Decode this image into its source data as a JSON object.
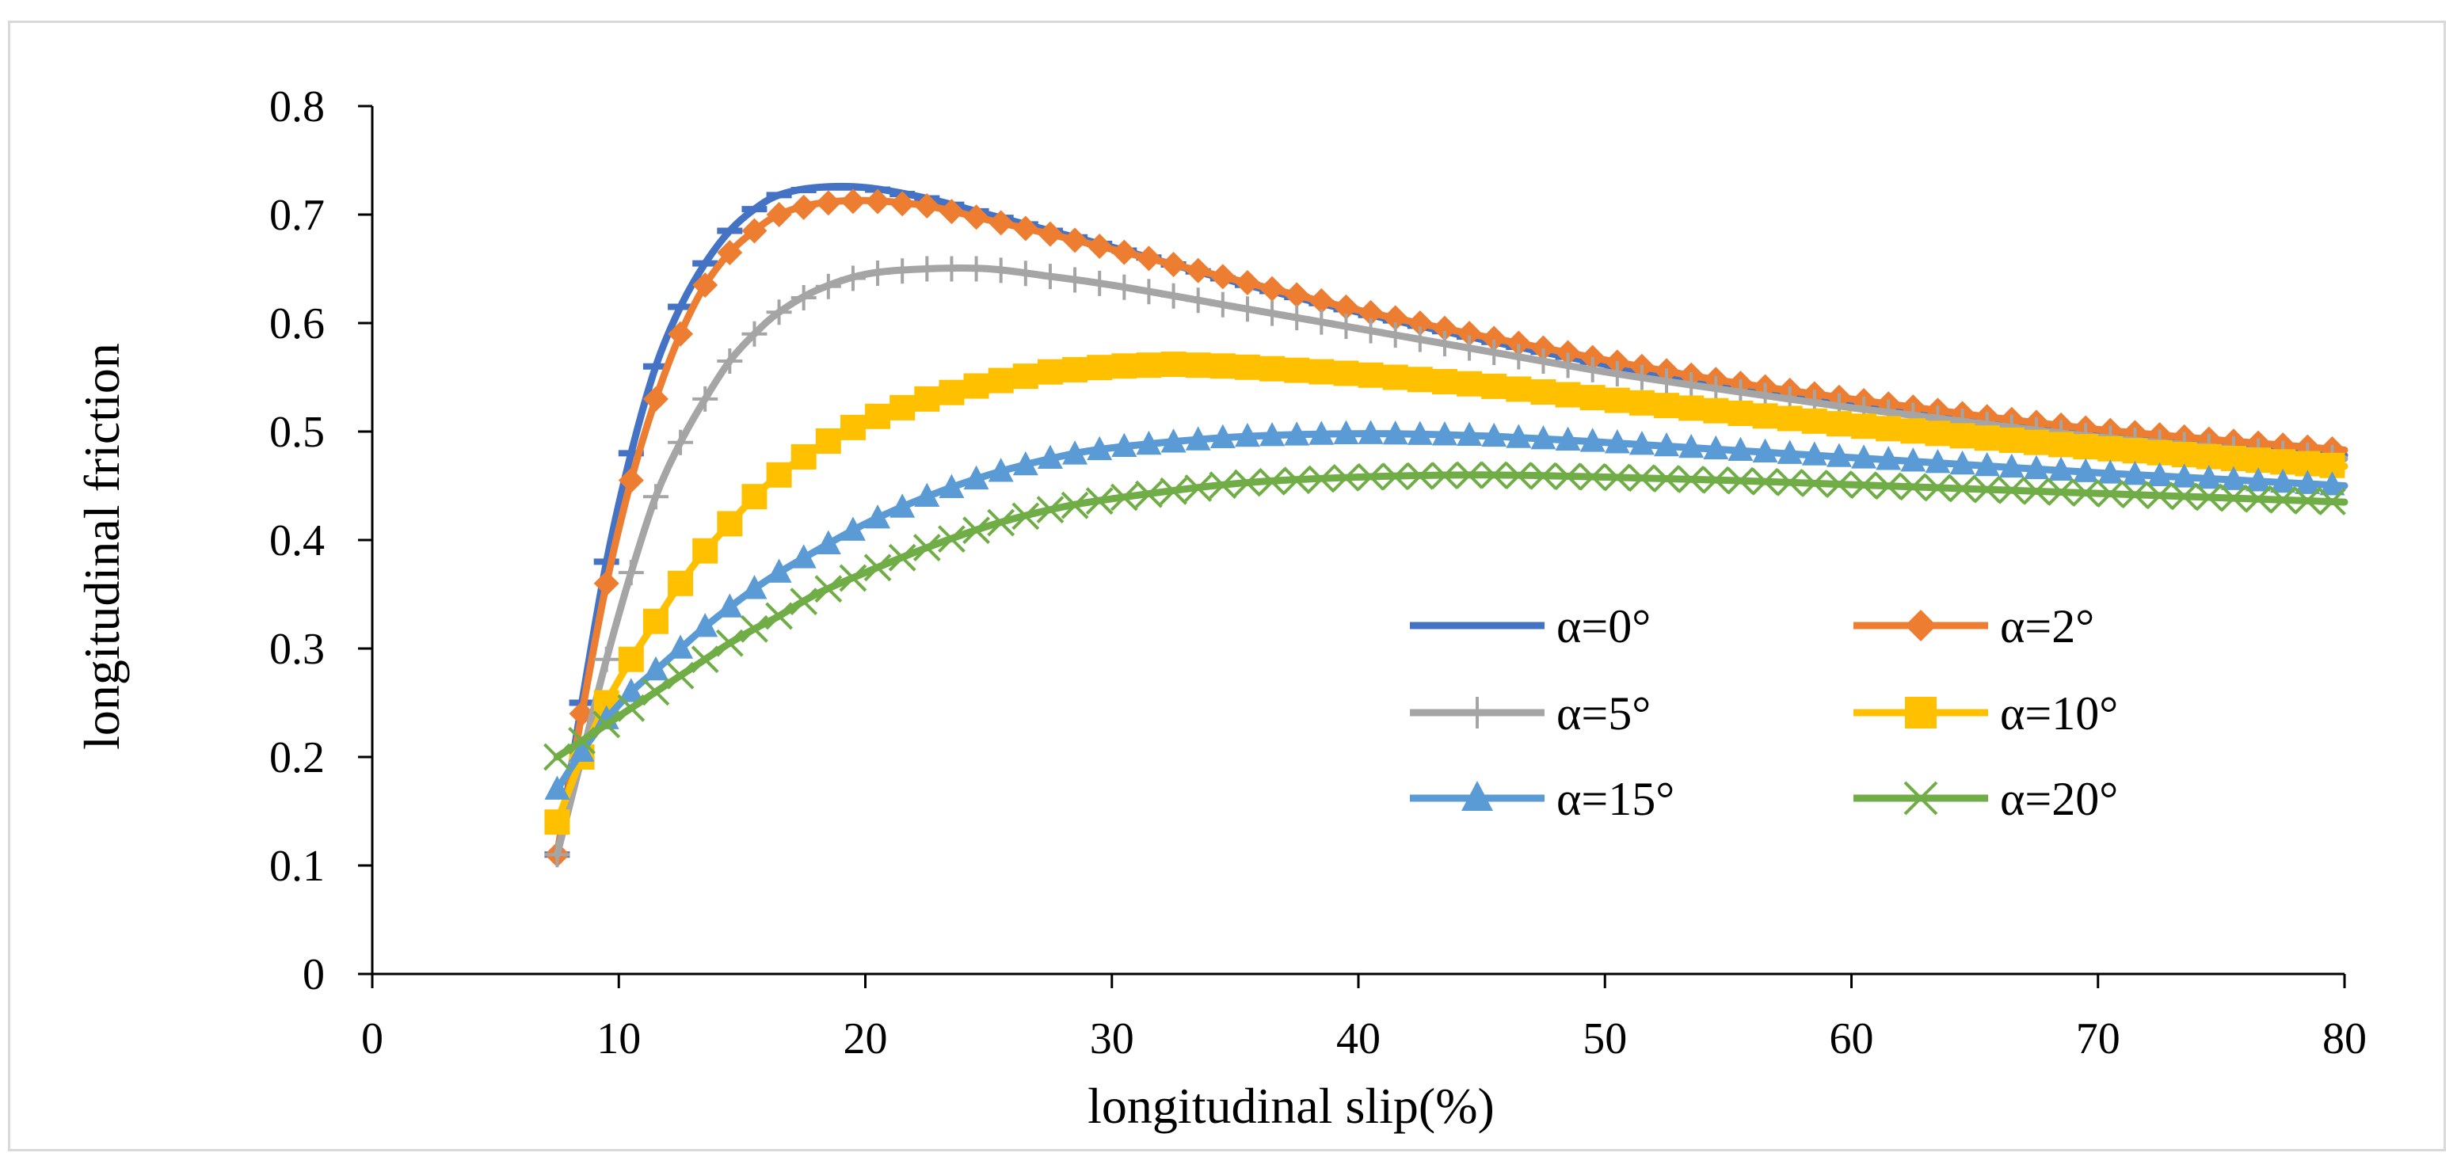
{
  "chart_data": {
    "type": "line",
    "title": "",
    "xlabel": "longitudinal slip(%)",
    "ylabel": "longitudinal friction",
    "xlim": [
      0,
      80
    ],
    "ylim": [
      0,
      0.8
    ],
    "xticks": [
      0,
      10,
      20,
      30,
      40,
      50,
      60,
      70,
      80
    ],
    "xtick_labels": [
      "0",
      "10",
      "20",
      "30",
      "40",
      "50",
      "60",
      "70",
      "80"
    ],
    "yticks": [
      0,
      0.1,
      0.2,
      0.3,
      0.4,
      0.5,
      0.6,
      0.7,
      0.8
    ],
    "ytick_labels": [
      "0",
      "0.1",
      "0.2",
      "0.3",
      "0.4",
      "0.5",
      "0.6",
      "0.7",
      "0.8"
    ],
    "grid": false,
    "legend_position": "lower-right",
    "series": [
      {
        "name": "α=0°",
        "color": "#4472C4",
        "marker": "dash",
        "x": [
          7.5,
          8.5,
          9.5,
          10.5,
          11.5,
          12.5,
          13.5,
          14.5,
          15.5,
          16.5,
          18,
          20,
          22.5,
          25,
          27.5,
          30,
          35,
          40,
          45,
          50,
          55,
          60,
          65,
          70,
          75,
          80
        ],
        "values": [
          0.11,
          0.25,
          0.38,
          0.48,
          0.56,
          0.615,
          0.655,
          0.685,
          0.705,
          0.718,
          0.725,
          0.725,
          0.715,
          0.7,
          0.685,
          0.67,
          0.638,
          0.61,
          0.585,
          0.562,
          0.542,
          0.525,
          0.51,
          0.498,
          0.488,
          0.478
        ]
      },
      {
        "name": "α=2°",
        "color": "#ED7D31",
        "marker": "diamond",
        "x": [
          7.5,
          8.5,
          9.5,
          10.5,
          11.5,
          12.5,
          13.5,
          14.5,
          15.5,
          16.5,
          18,
          20,
          22.5,
          25,
          27.5,
          30,
          35,
          40,
          45,
          50,
          55,
          60,
          65,
          70,
          75,
          80
        ],
        "values": [
          0.11,
          0.24,
          0.36,
          0.455,
          0.53,
          0.59,
          0.635,
          0.665,
          0.685,
          0.7,
          0.71,
          0.713,
          0.708,
          0.695,
          0.682,
          0.668,
          0.64,
          0.612,
          0.588,
          0.566,
          0.546,
          0.53,
          0.515,
          0.502,
          0.492,
          0.483
        ]
      },
      {
        "name": "α=5°",
        "color": "#A5A5A5",
        "marker": "plus",
        "x": [
          7.5,
          8.5,
          9.5,
          10.5,
          11.5,
          12.5,
          13.5,
          14.5,
          15.5,
          16.5,
          18,
          20,
          22.5,
          25,
          27.5,
          30,
          35,
          40,
          45,
          50,
          55,
          60,
          65,
          70,
          75,
          80
        ],
        "values": [
          0.11,
          0.2,
          0.29,
          0.37,
          0.44,
          0.49,
          0.53,
          0.565,
          0.59,
          0.61,
          0.63,
          0.645,
          0.65,
          0.65,
          0.643,
          0.635,
          0.615,
          0.595,
          0.575,
          0.555,
          0.538,
          0.522,
          0.508,
          0.495,
          0.485,
          0.475
        ]
      },
      {
        "name": "α=10°",
        "color": "#FFC000",
        "marker": "square",
        "x": [
          7.5,
          8.5,
          9.5,
          10.5,
          11.5,
          12.5,
          13.5,
          14.5,
          15.5,
          16.5,
          18,
          20,
          22.5,
          25,
          27.5,
          30,
          32.5,
          35,
          40,
          45,
          50,
          55,
          60,
          65,
          70,
          75,
          80
        ],
        "values": [
          0.14,
          0.2,
          0.25,
          0.29,
          0.325,
          0.36,
          0.39,
          0.415,
          0.44,
          0.46,
          0.485,
          0.51,
          0.53,
          0.545,
          0.555,
          0.56,
          0.562,
          0.56,
          0.553,
          0.543,
          0.53,
          0.518,
          0.506,
          0.495,
          0.485,
          0.476,
          0.468
        ]
      },
      {
        "name": "α=15°",
        "color": "#5B9BD5",
        "marker": "triangle",
        "x": [
          7.5,
          8.5,
          9.5,
          10.5,
          11.5,
          12.5,
          13.5,
          14.5,
          15.5,
          16.5,
          18,
          20,
          22.5,
          25,
          27.5,
          30,
          35,
          40,
          45,
          50,
          55,
          60,
          65,
          70,
          75,
          80
        ],
        "values": [
          0.17,
          0.205,
          0.235,
          0.26,
          0.28,
          0.3,
          0.32,
          0.338,
          0.355,
          0.37,
          0.39,
          0.415,
          0.44,
          0.46,
          0.475,
          0.485,
          0.495,
          0.498,
          0.496,
          0.49,
          0.483,
          0.476,
          0.469,
          0.462,
          0.456,
          0.45
        ]
      },
      {
        "name": "α=20°",
        "color": "#70AD47",
        "marker": "cross",
        "x": [
          7.5,
          8.5,
          9.5,
          10.5,
          11.5,
          12.5,
          13.5,
          14.5,
          15.5,
          16.5,
          18,
          20,
          22.5,
          25,
          27.5,
          30,
          35,
          40,
          45,
          50,
          55,
          60,
          65,
          70,
          75,
          80
        ],
        "values": [
          0.2,
          0.215,
          0.23,
          0.245,
          0.26,
          0.275,
          0.29,
          0.305,
          0.318,
          0.33,
          0.35,
          0.37,
          0.393,
          0.413,
          0.428,
          0.438,
          0.452,
          0.458,
          0.46,
          0.458,
          0.455,
          0.451,
          0.447,
          0.443,
          0.439,
          0.435
        ]
      }
    ]
  }
}
